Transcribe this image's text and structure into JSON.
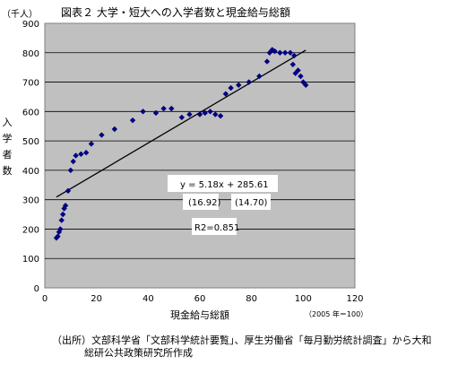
{
  "chart_data": {
    "type": "scatter",
    "title": "図表２ 大学・短大への入学者数と現金給与総額",
    "unit_label": "（千人）",
    "ylabel": "入学者数",
    "xlabel": "現金給与総額",
    "x_note": "（2005 年＝100）",
    "xlim": [
      0,
      120
    ],
    "ylim": [
      0,
      900
    ],
    "x_ticks": [
      0,
      20,
      40,
      60,
      80,
      100,
      120
    ],
    "y_ticks": [
      0,
      100,
      200,
      300,
      400,
      500,
      600,
      700,
      800,
      900
    ],
    "grid": true,
    "legend": "none",
    "colors": {
      "plot_bg": "#c0c0c0",
      "points": "#000080",
      "trend": "#000000"
    },
    "series": [
      {
        "x": [
          4.5,
          5,
          5.5,
          6,
          6.5,
          7,
          7.5,
          8,
          9,
          10,
          11,
          12,
          14,
          16,
          18,
          22,
          27,
          34,
          38,
          43,
          46,
          49,
          53,
          56,
          60,
          62,
          64,
          66,
          68,
          70,
          72,
          75,
          79,
          83,
          86,
          87,
          88,
          89,
          91,
          93,
          95,
          96,
          96.5,
          97,
          98,
          99,
          100,
          101
        ],
        "y": [
          170,
          175,
          190,
          200,
          230,
          250,
          270,
          280,
          330,
          400,
          430,
          450,
          455,
          460,
          490,
          520,
          540,
          570,
          600,
          595,
          610,
          610,
          580,
          590,
          590,
          595,
          600,
          590,
          585,
          660,
          680,
          690,
          700,
          720,
          770,
          800,
          810,
          805,
          800,
          800,
          800,
          760,
          790,
          730,
          740,
          720,
          700,
          690
        ]
      }
    ],
    "trendline": {
      "slope": 5.18,
      "intercept": 285.61,
      "x_range": [
        4.5,
        101
      ]
    },
    "annotations": {
      "equation": "y = 5.18x + 285.61",
      "t_values": [
        "(16.92)",
        "(14.70)"
      ],
      "r2": "R2=0.851"
    }
  },
  "source": {
    "line1": "（出所）文部科学省「文部科学統計要覧」、厚生労働省「毎月勤労統計調査」から大和",
    "line2": "総研公共政策研究所作成"
  }
}
